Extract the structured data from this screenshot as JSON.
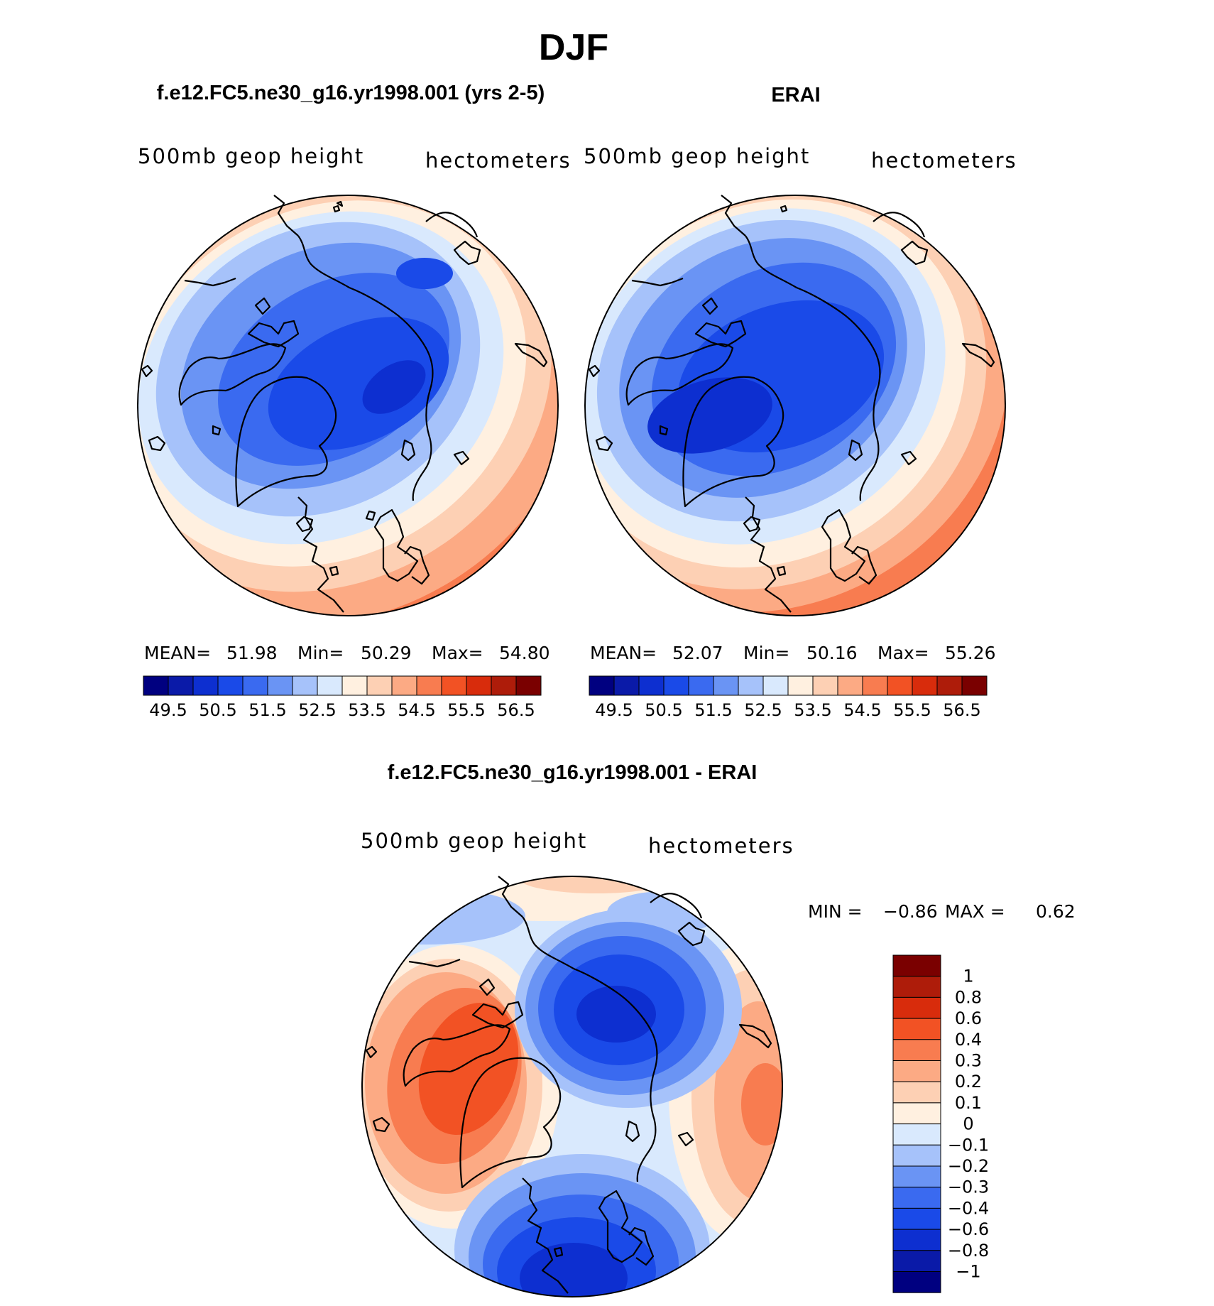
{
  "figure": {
    "season": "DJF",
    "panels": [
      {
        "title": "f.e12.FC5.ne30_g16.yr1998.001 (yrs 2-5)",
        "field_label": "500mb geop height",
        "units_label": "hectometers",
        "stats": {
          "mean_label": "MEAN=",
          "mean": "51.98",
          "min_label": "Min=",
          "min": "50.29",
          "max_label": "Max=",
          "max": "54.80"
        }
      },
      {
        "title": "ERAI",
        "field_label": "500mb geop height",
        "units_label": "hectometers",
        "stats": {
          "mean_label": "MEAN=",
          "mean": "52.07",
          "min_label": "Min=",
          "min": "50.16",
          "max_label": "Max=",
          "max": "55.26"
        }
      }
    ],
    "difference": {
      "title": "f.e12.FC5.ne30_g16.yr1998.001 - ERAI",
      "field_label": "500mb geop height",
      "units_label": "hectometers",
      "min_label": "MIN =",
      "min": "−0.86",
      "max_label": "MAX =",
      "max": "0.62"
    }
  },
  "colorbar_main": {
    "colors": [
      "#000080",
      "#0a1aa8",
      "#0d2fd0",
      "#1a4ae8",
      "#3a6af0",
      "#6a94f4",
      "#a6c2fa",
      "#d9e9fd",
      "#fff0e0",
      "#fdd0b4",
      "#fcaa84",
      "#f87c50",
      "#f25224",
      "#d82c0c",
      "#ae1c0a",
      "#7a0000"
    ],
    "tick_labels": [
      "49.5",
      "50.5",
      "51.5",
      "52.5",
      "53.5",
      "54.5",
      "55.5",
      "56.5"
    ]
  },
  "colorbar_diff": {
    "colors": [
      "#7a0000",
      "#ae1c0a",
      "#d82c0c",
      "#f25224",
      "#f87c50",
      "#fcaa84",
      "#fdd0b4",
      "#fff0e0",
      "#d9e9fd",
      "#a6c2fa",
      "#6a94f4",
      "#3a6af0",
      "#1a4ae8",
      "#0d2fd0",
      "#0a1aa8",
      "#000080"
    ],
    "tick_labels": [
      "1",
      "0.8",
      "0.6",
      "0.4",
      "0.3",
      "0.2",
      "0.1",
      "0",
      "−0.1",
      "−0.2",
      "−0.3",
      "−0.4",
      "−0.6",
      "−0.8",
      "−1"
    ]
  }
}
